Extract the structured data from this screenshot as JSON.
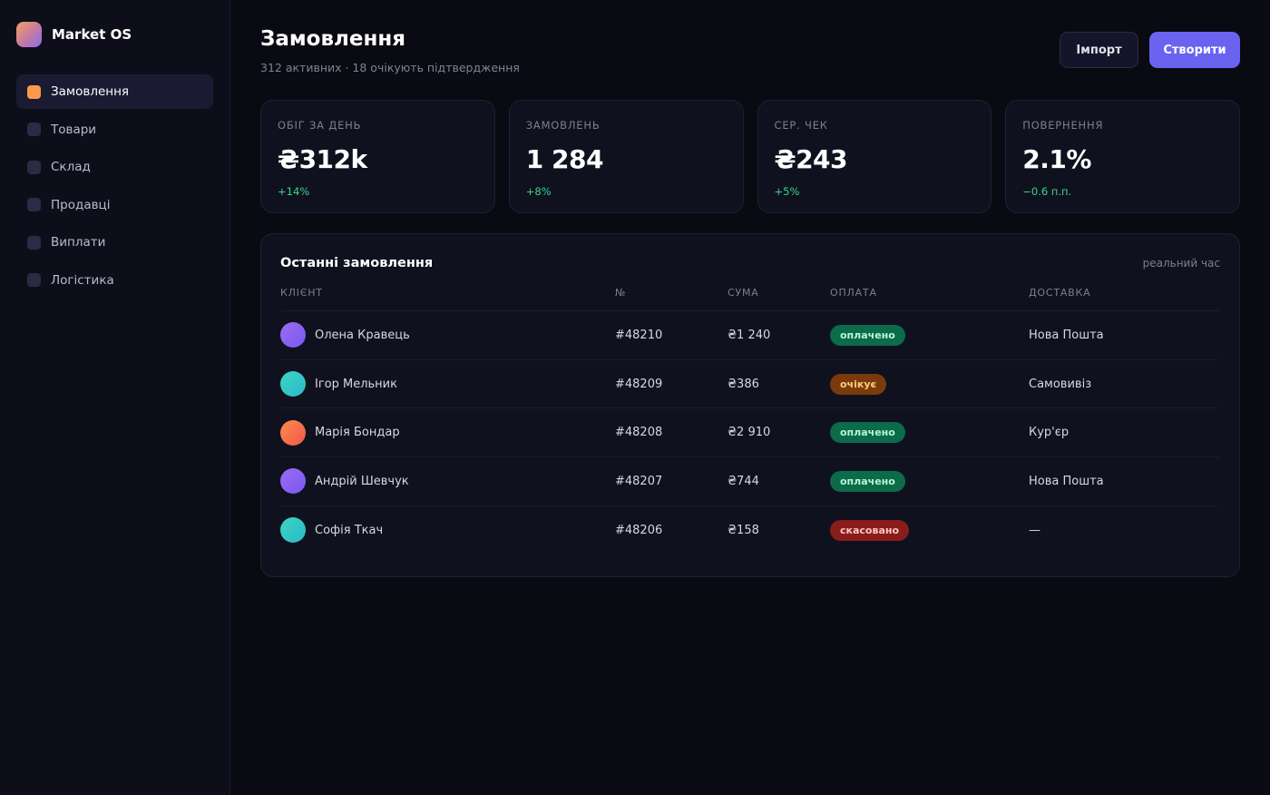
{
  "brand": {
    "name": "Market OS"
  },
  "sidebar": {
    "items": [
      {
        "label": "Замовлення",
        "active": true
      },
      {
        "label": "Товари",
        "active": false
      },
      {
        "label": "Склад",
        "active": false
      },
      {
        "label": "Продавці",
        "active": false
      },
      {
        "label": "Виплати",
        "active": false
      },
      {
        "label": "Логістика",
        "active": false
      }
    ]
  },
  "header": {
    "title": "Замовлення",
    "subtitle": "312 активних · 18 очікують підтвердження",
    "import_label": "Імпорт",
    "create_label": "Створити"
  },
  "kpis": [
    {
      "label": "Обіг за день",
      "value": "₴312k",
      "delta": "+14%"
    },
    {
      "label": "Замовлень",
      "value": "1 284",
      "delta": "+8%"
    },
    {
      "label": "Сер. чек",
      "value": "₴243",
      "delta": "+5%"
    },
    {
      "label": "Повернення",
      "value": "2.1%",
      "delta": "−0.6 п.п."
    }
  ],
  "orders": {
    "title": "Останні замовлення",
    "meta": "реальний час",
    "columns": {
      "client": "КЛІЄНТ",
      "number": "№",
      "amount": "СУМА",
      "payment": "ОПЛАТА",
      "delivery": "ДОСТАВКА"
    },
    "rows": [
      {
        "client": "Олена Кравець",
        "number": "#48210",
        "amount": "₴1 240",
        "payment": "оплачено",
        "delivery": "Нова Пошта"
      },
      {
        "client": "Ігор Мельник",
        "number": "#48209",
        "amount": "₴386",
        "payment": "очікує",
        "delivery": "Самовивіз"
      },
      {
        "client": "Марія Бондар",
        "number": "#48208",
        "amount": "₴2 910",
        "payment": "оплачено",
        "delivery": "Кур'єр"
      },
      {
        "client": "Андрій Шевчук",
        "number": "#48207",
        "amount": "₴744",
        "payment": "оплачено",
        "delivery": "Нова Пошта"
      },
      {
        "client": "Софія Ткач",
        "number": "#48206",
        "amount": "₴158",
        "payment": "скасовано",
        "delivery": "—"
      }
    ]
  },
  "colors": {
    "accent": "#6a63f0",
    "active_nav": "#fb9a4a",
    "positive": "#38d68a",
    "paid": "#0c6b48",
    "pending": "#7a3a0b",
    "cancelled": "#8a1c1c"
  }
}
